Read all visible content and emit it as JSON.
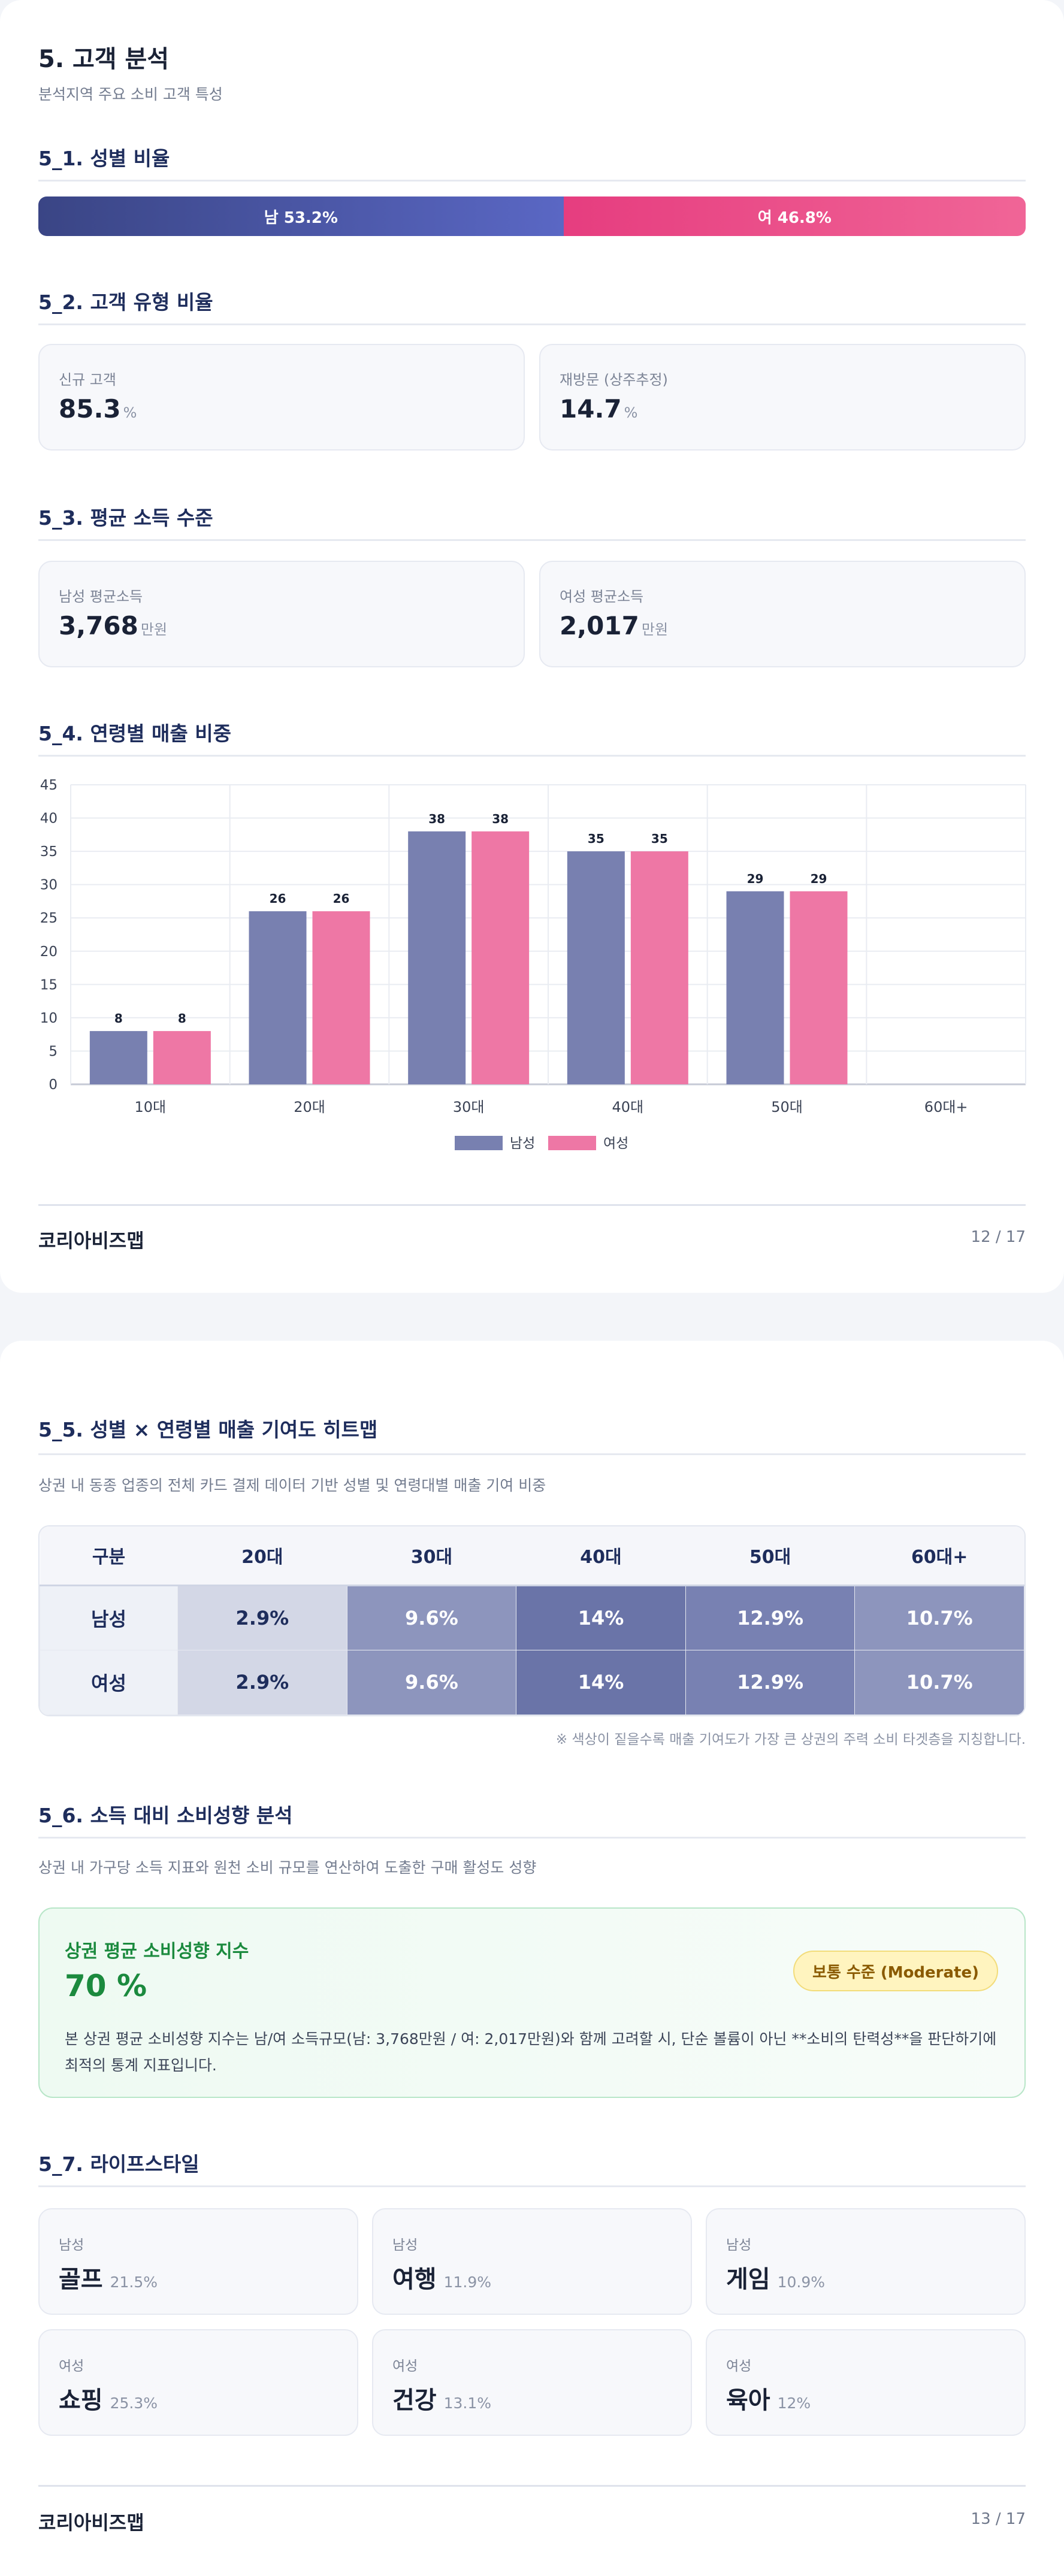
{
  "page1": {
    "title": "5. 고객 분석",
    "subtitle": "분석지역 주요 소비 고객 특성",
    "gender": {
      "title": "5_1. 성별 비율",
      "male_label": "남 53.2%",
      "female_label": "여 46.8%",
      "male_share": 53.2,
      "female_share": 46.8,
      "male_color": "#4a56a6",
      "female_color": "#ea4d88"
    },
    "customer_type": {
      "title": "5_2. 고객 유형 비율",
      "cards": [
        {
          "label": "신규 고객",
          "value": "85.3",
          "unit": "%"
        },
        {
          "label": "재방문 (상주추정)",
          "value": "14.7",
          "unit": "%"
        }
      ]
    },
    "income": {
      "title": "5_3. 평균 소득 수준",
      "cards": [
        {
          "label": "남성 평균소득",
          "value": "3,768",
          "unit": "만원"
        },
        {
          "label": "여성 평균소득",
          "value": "2,017",
          "unit": "만원"
        }
      ]
    },
    "age_sales": {
      "title": "5_4. 연령별 매출 비중"
    },
    "footer": {
      "brand": "코리아비즈맵",
      "page": "12 / 17"
    }
  },
  "chart_data": {
    "type": "bar",
    "categories": [
      "10대",
      "20대",
      "30대",
      "40대",
      "50대",
      "60대+"
    ],
    "series": [
      {
        "name": "남성",
        "values": [
          8,
          26,
          38,
          35,
          29,
          null
        ],
        "color": "#7880b0"
      },
      {
        "name": "여성",
        "values": [
          8,
          26,
          38,
          35,
          29,
          null
        ],
        "color": "#ee77a5"
      }
    ],
    "ylim": [
      0,
      45
    ],
    "yticks": [
      "0",
      "5",
      "10",
      "15",
      "20",
      "25",
      "30",
      "35",
      "40",
      "45"
    ],
    "grid": true,
    "legend": "bottom-center"
  },
  "page2": {
    "heatmap": {
      "title": "5_5. 성별 × 연령별 매출 기여도 히트맵",
      "desc": "상권 내 동종 업종의 전체 카드 결제 데이터 기반 성별 및 연령대별 매출 기여 비중",
      "header": [
        "구분",
        "20대",
        "30대",
        "40대",
        "50대",
        "60대+"
      ],
      "rows": [
        {
          "label": "남성",
          "cells": [
            "2.9%",
            "9.6%",
            "14%",
            "12.9%",
            "10.7%"
          ]
        },
        {
          "label": "여성",
          "cells": [
            "2.9%",
            "9.6%",
            "14%",
            "12.9%",
            "10.7%"
          ]
        }
      ],
      "note": "※ 색상이 짙을수록 매출 기여도가 가장 큰 상권의 주력 소비 타겟층을 지칭합니다."
    },
    "consumption": {
      "title": "5_6. 소득 대비 소비성향 분석",
      "desc": "상권 내 가구당 소득 지표와 원천 소비 규모를 연산하여 도출한 구매 활성도 성향",
      "card_title": "상권 평균 소비성향 지수",
      "card_value": "70 %",
      "badge": "보통 수준 (Moderate)",
      "card_desc": "본 상권 평균 소비성향 지수는 남/여 소득규모(남: 3,768만원 / 여: 2,017만원)와 함께 고려할 시, 단순 볼륨이 아닌 **소비의 탄력성**을 판단하기에 최적의 통계 지표입니다."
    },
    "lifestyle": {
      "title": "5_7. 라이프스타일",
      "items": [
        {
          "gender": "남성",
          "name": "골프",
          "pct": "21.5%"
        },
        {
          "gender": "남성",
          "name": "여행",
          "pct": "11.9%"
        },
        {
          "gender": "남성",
          "name": "게임",
          "pct": "10.9%"
        },
        {
          "gender": "여성",
          "name": "쇼핑",
          "pct": "25.3%"
        },
        {
          "gender": "여성",
          "name": "건강",
          "pct": "13.1%"
        },
        {
          "gender": "여성",
          "name": "육아",
          "pct": "12%"
        }
      ]
    },
    "footer": {
      "brand": "코리아비즈맵",
      "page": "13 / 17"
    }
  }
}
